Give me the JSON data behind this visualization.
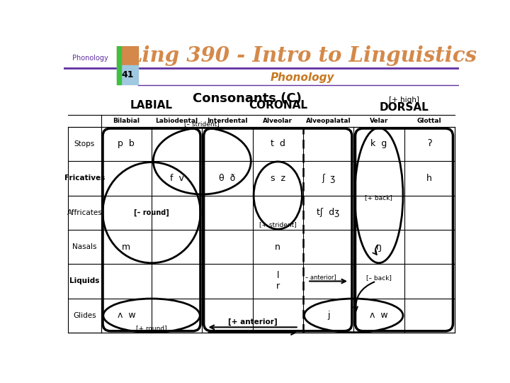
{
  "title_main": "Ling 390 - Intro to Linguistics",
  "subtitle": "Phonology",
  "slide_label": "Phonology",
  "slide_num": "41",
  "table_title": "Consonants (C)",
  "col_headers": [
    "Bilabial",
    "Labiodental",
    "Interdental",
    "Alveolar",
    "Alveopalatal",
    "Velar",
    "Glottal"
  ],
  "group_labels": [
    "LABIAL",
    "CORONAL",
    "DORSAL"
  ],
  "high_label": "[+ high]",
  "row_headers": [
    "Stops",
    "Fricatives",
    "Affricates",
    "Nasals",
    "Liquids",
    "Glides"
  ],
  "bg_color": "#ffffff",
  "title_color": "#d4894a",
  "subtitle_color": "#c87820",
  "slide_label_color": "#6030a0",
  "orange_sq": "#d4894a",
  "blue_sq": "#a0c8e0",
  "green_bar": "#40c040",
  "purple_line": "#6030a0",
  "cell_map": {
    "0,0": "p  b",
    "0,5": "k  g",
    "0,6": "ʔ",
    "1,1": "f  v",
    "1,2": "θ  ð",
    "1,3": "s  z",
    "1,4": "ʃ  ʒ",
    "1,6": "h",
    "2,4": "tʃ  dʒ",
    "3,0": "m",
    "3,3": "n",
    "3,5": "ŋ",
    "4,3": "l\nr",
    "5,0": "ʌ  w",
    "5,4": "j",
    "5,5": "ʌ  w"
  },
  "stops_alveolar": "t  d",
  "row_bold": [
    "Fricatives",
    "Liquids"
  ]
}
